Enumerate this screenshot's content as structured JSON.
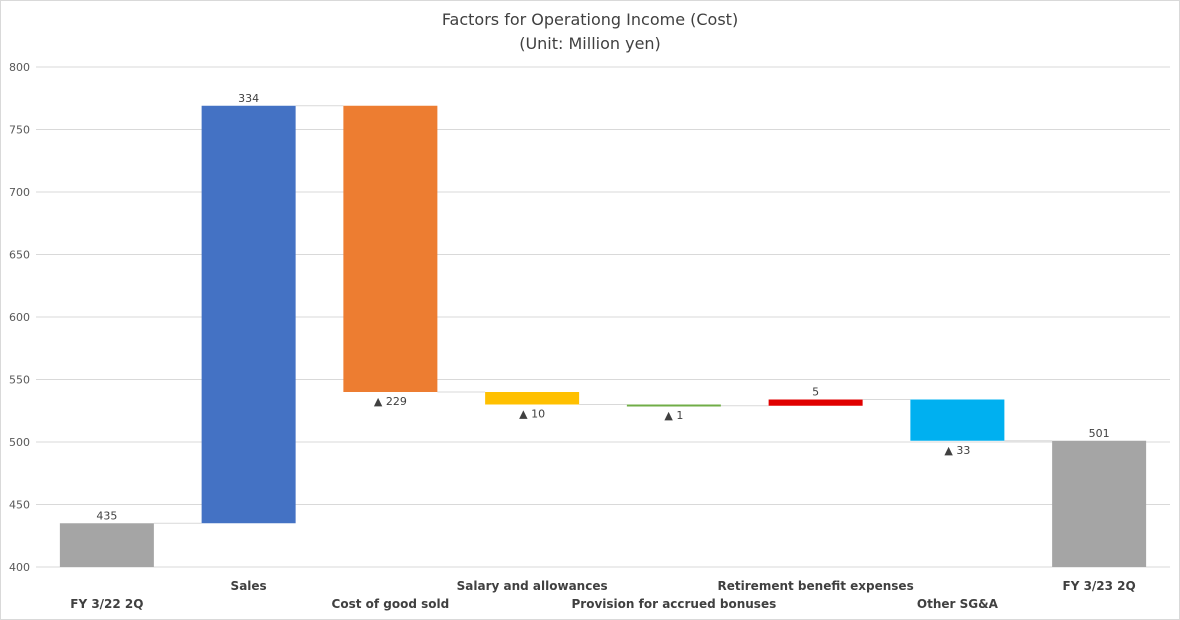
{
  "chart_data": {
    "type": "bar",
    "subtype": "waterfall",
    "title": "Factors for Operationg Income (Cost)",
    "subtitle": "(Unit: Million yen)",
    "xlabel": "",
    "ylabel": "",
    "ylim": [
      400,
      800
    ],
    "yticks": [
      400,
      450,
      500,
      550,
      600,
      650,
      700,
      750,
      800
    ],
    "grid": true,
    "legend": "none",
    "categories": [
      "FY 3/22 2Q",
      "Sales",
      "Cost of good sold",
      "Salary and allowances",
      "Provision for accrued bonuses",
      "Retirement benefit expenses",
      "Other SG&A",
      "FY 3/23 2Q"
    ],
    "bars": [
      {
        "kind": "total",
        "start": 0,
        "end": 435,
        "label": "435",
        "color": "#a5a5a5"
      },
      {
        "kind": "delta",
        "start": 435,
        "end": 769,
        "label": "334",
        "color": "#4472c4"
      },
      {
        "kind": "delta",
        "start": 769,
        "end": 540,
        "label": "▲ 229",
        "color": "#ed7d31"
      },
      {
        "kind": "delta",
        "start": 540,
        "end": 530,
        "label": "▲ 10",
        "color": "#ffc000"
      },
      {
        "kind": "delta",
        "start": 530,
        "end": 529,
        "label": "▲ 1",
        "color": "#70ad47"
      },
      {
        "kind": "delta",
        "start": 529,
        "end": 534,
        "label": "5",
        "color": "#e00000"
      },
      {
        "kind": "delta",
        "start": 534,
        "end": 501,
        "label": "▲ 33",
        "color": "#00b0f0"
      },
      {
        "kind": "total",
        "start": 0,
        "end": 501,
        "label": "501",
        "color": "#a5a5a5"
      }
    ]
  }
}
